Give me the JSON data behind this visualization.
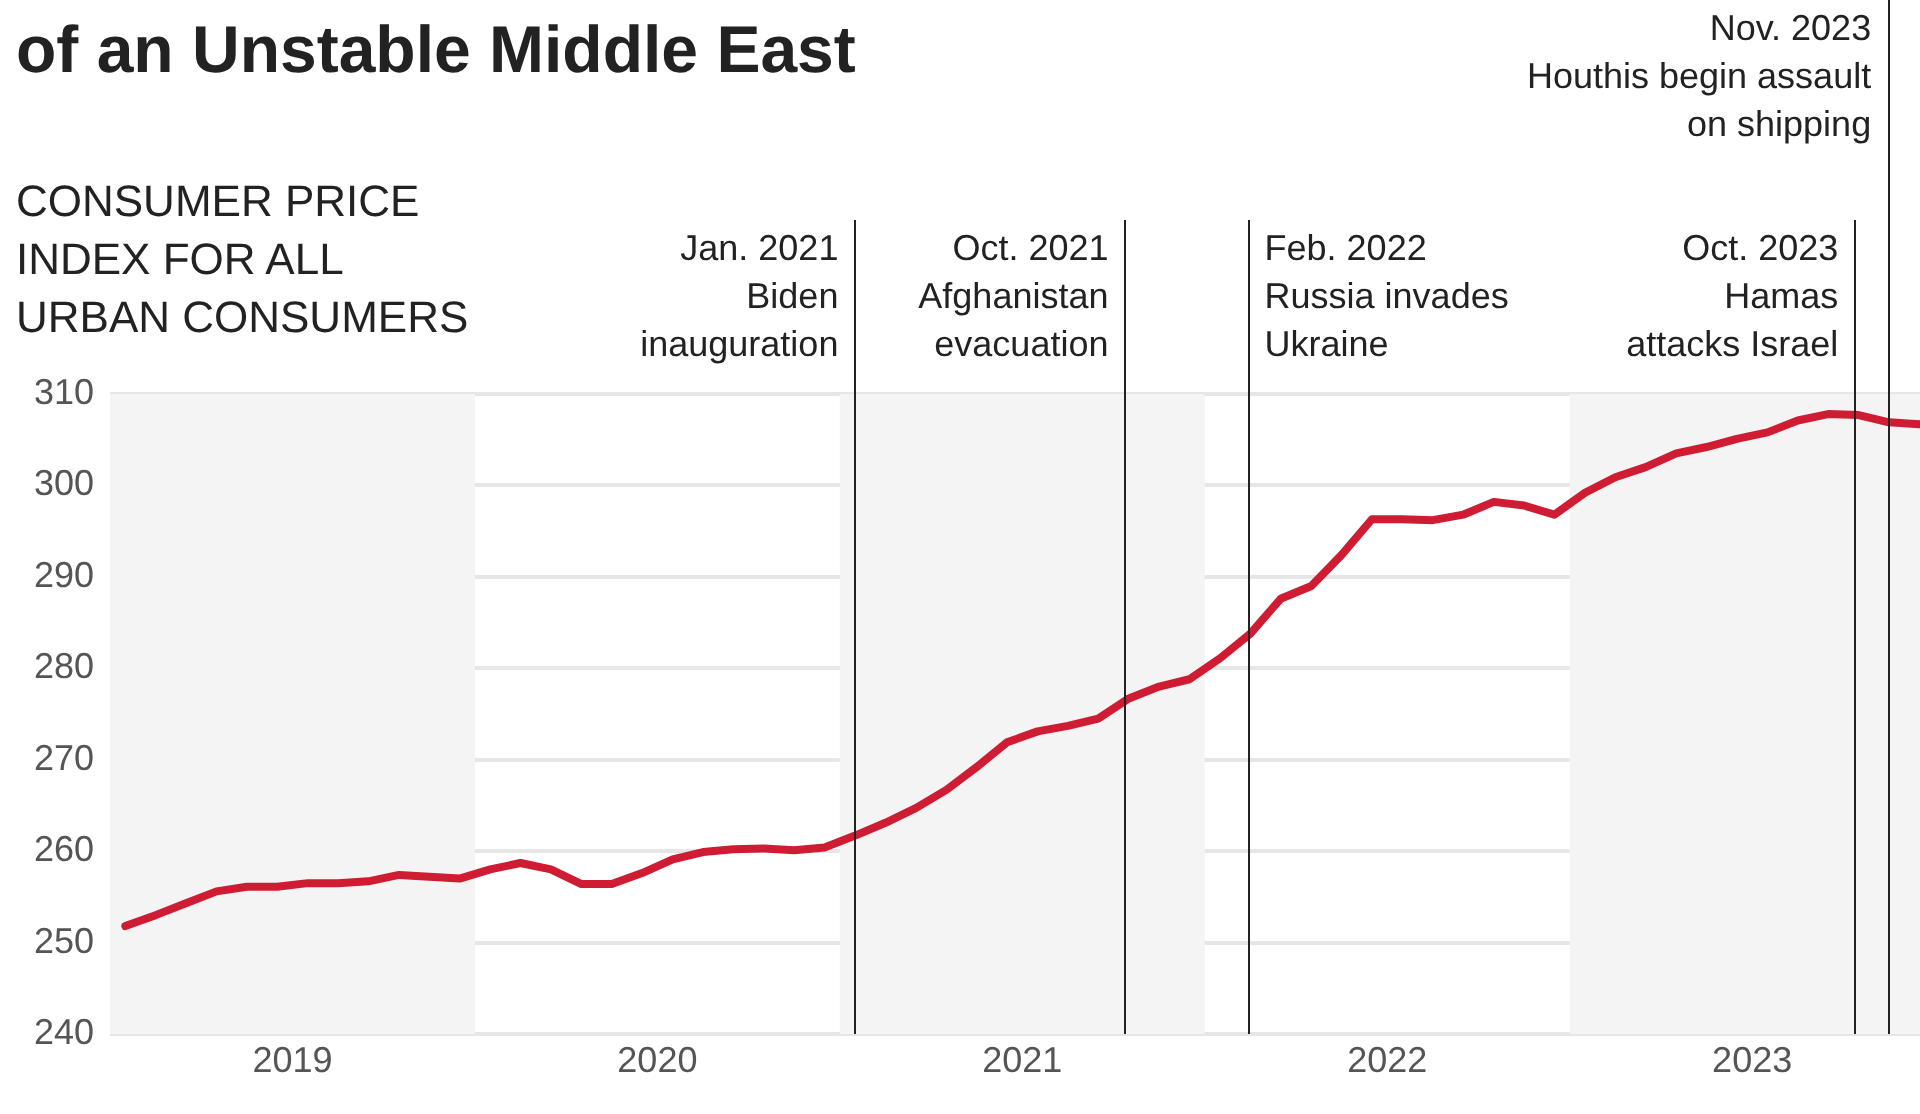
{
  "chart_data": {
    "type": "line",
    "title": "of an Unstable Middle East",
    "ylabel": "CONSUMER PRICE\nINDEX FOR ALL\nURBAN CONSUMERS",
    "xlim": [
      2019,
      2023.96
    ],
    "xticks": [
      {
        "value": 2019.5,
        "label": "2019"
      },
      {
        "value": 2020.5,
        "label": "2020"
      },
      {
        "value": 2021.5,
        "label": "2021"
      },
      {
        "value": 2022.5,
        "label": "2022"
      },
      {
        "value": 2023.5,
        "label": "2023"
      }
    ],
    "ylim": [
      240,
      310
    ],
    "yticks": [
      240,
      250,
      260,
      270,
      280,
      290,
      300,
      310
    ],
    "grid": "y",
    "legend": false,
    "marker": "none",
    "line_style": "solid",
    "series": [
      {
        "color": "#d01c32",
        "x": [
          2019.042,
          2019.125,
          2019.208,
          2019.292,
          2019.375,
          2019.458,
          2019.542,
          2019.625,
          2019.708,
          2019.792,
          2019.875,
          2019.958,
          2020.042,
          2020.125,
          2020.208,
          2020.292,
          2020.375,
          2020.458,
          2020.542,
          2020.625,
          2020.708,
          2020.792,
          2020.875,
          2020.958,
          2021.042,
          2021.125,
          2021.208,
          2021.292,
          2021.375,
          2021.458,
          2021.542,
          2021.625,
          2021.708,
          2021.792,
          2021.875,
          2021.958,
          2022.042,
          2022.125,
          2022.208,
          2022.292,
          2022.375,
          2022.458,
          2022.542,
          2022.625,
          2022.708,
          2022.792,
          2022.875,
          2022.958,
          2023.042,
          2023.125,
          2023.208,
          2023.292,
          2023.375,
          2023.458,
          2023.542,
          2023.625,
          2023.708,
          2023.792,
          2023.875,
          2023.958
        ],
        "values": [
          251.8,
          253.0,
          254.3,
          255.6,
          256.1,
          256.1,
          256.5,
          256.5,
          256.7,
          257.4,
          257.2,
          257.0,
          258.0,
          258.7,
          258.0,
          256.4,
          256.4,
          257.6,
          259.1,
          259.9,
          260.2,
          260.3,
          260.1,
          260.4,
          261.7,
          263.1,
          264.7,
          266.7,
          269.2,
          271.9,
          273.1,
          273.7,
          274.5,
          276.7,
          278.0,
          278.8,
          281.1,
          283.8,
          287.6,
          289.0,
          292.4,
          296.3,
          296.3,
          296.2,
          296.8,
          298.2,
          297.8,
          296.8,
          299.2,
          300.9,
          302.0,
          303.5,
          304.2,
          305.1,
          305.8,
          307.1,
          307.8,
          307.7,
          306.9,
          306.7
        ]
      }
    ],
    "ref_lines": [
      {
        "axis": "x",
        "value": 2021.04,
        "label": "Jan. 2021\nBiden\ninauguration",
        "color": "#222222"
      },
      {
        "axis": "x",
        "value": 2021.78,
        "label": "Oct. 2021\nAfghanistan\nevacuation",
        "color": "#222222"
      },
      {
        "axis": "x",
        "value": 2022.12,
        "label": "Feb. 2022\nRussia invades\nUkraine",
        "color": "#222222"
      },
      {
        "axis": "x",
        "value": 2023.78,
        "label": "Oct. 2023\nHamas\nattacks Israel",
        "color": "#222222"
      },
      {
        "axis": "x",
        "value": 2023.87,
        "label": "Nov. 2023\nHouthis begin assault\non shipping",
        "color": "#222222"
      }
    ],
    "bands": [
      {
        "axis": "x",
        "from": 2019,
        "to": 2020,
        "color": "#f4f4f4"
      },
      {
        "axis": "x",
        "from": 2021,
        "to": 2022,
        "color": "#f4f4f4"
      },
      {
        "axis": "x",
        "from": 2023,
        "to": 2023.96,
        "color": "#f4f4f4"
      }
    ]
  }
}
